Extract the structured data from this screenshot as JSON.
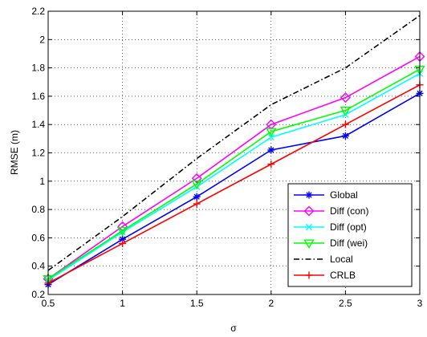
{
  "chart_data": {
    "type": "line",
    "title": "",
    "xlabel": "σ",
    "ylabel": "RMSE (m)",
    "xlim": [
      0.5,
      3
    ],
    "ylim": [
      0.2,
      2.2
    ],
    "xticks": [
      0.5,
      1,
      1.5,
      2,
      2.5,
      3
    ],
    "xtick_labels": [
      "0.5",
      "1",
      "1.5",
      "2",
      "2.5",
      "3"
    ],
    "yticks": [
      0.2,
      0.4,
      0.6,
      0.8,
      1.0,
      1.2,
      1.4,
      1.6,
      1.8,
      2.0,
      2.2
    ],
    "ytick_labels": [
      "0.2",
      "0.4",
      "0.6",
      "0.8",
      "1",
      "1.2",
      "1.4",
      "1.6",
      "1.8",
      "2",
      "2.2"
    ],
    "grid": true,
    "legend_position": "lower-right",
    "x": [
      0.5,
      1,
      1.5,
      2,
      2.5,
      3
    ],
    "series": [
      {
        "name": "Global",
        "values": [
          0.27,
          0.59,
          0.89,
          1.22,
          1.32,
          1.62
        ],
        "color": "#0000ff",
        "marker": "asterisk",
        "dash": "solid"
      },
      {
        "name": "Diff (con)",
        "values": [
          0.31,
          0.68,
          1.02,
          1.4,
          1.59,
          1.88
        ],
        "color": "#ff00ff",
        "marker": "diamond",
        "dash": "solid"
      },
      {
        "name": "Diff (opt)",
        "values": [
          0.3,
          0.64,
          0.96,
          1.31,
          1.47,
          1.76
        ],
        "color": "#00ffff",
        "marker": "x",
        "dash": "solid"
      },
      {
        "name": "Diff (wei)",
        "values": [
          0.31,
          0.65,
          0.98,
          1.35,
          1.5,
          1.79
        ],
        "color": "#00ff00",
        "marker": "triangle-down",
        "dash": "solid"
      },
      {
        "name": "Local",
        "values": [
          0.37,
          0.75,
          1.16,
          1.54,
          1.8,
          2.17
        ],
        "color": "#000000",
        "marker": "none",
        "dash": "dashdot"
      },
      {
        "name": "CRLB",
        "values": [
          0.28,
          0.56,
          0.84,
          1.12,
          1.4,
          1.68
        ],
        "color": "#ff0000",
        "marker": "plus",
        "dash": "solid"
      }
    ]
  }
}
